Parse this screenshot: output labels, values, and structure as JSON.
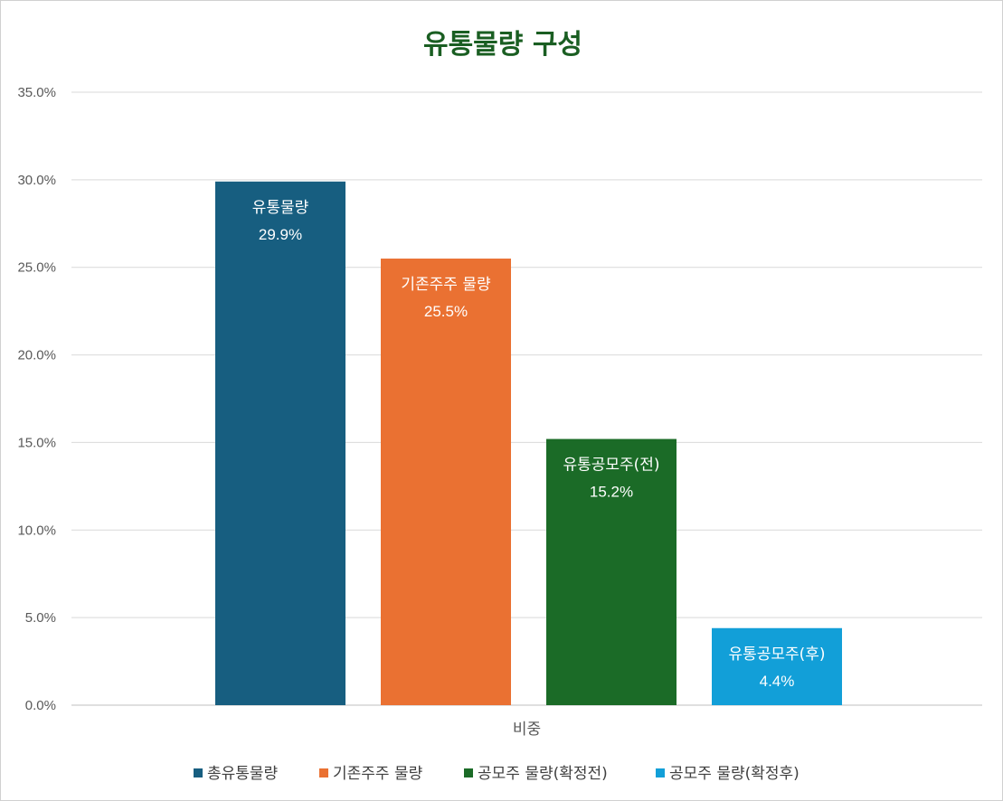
{
  "chart_data": {
    "type": "bar",
    "title": "유통물량 구성",
    "title_color": "#1a5e22",
    "categories": [
      "비중"
    ],
    "ylim": [
      0,
      35
    ],
    "yticks": [
      "0.0%",
      "5.0%",
      "10.0%",
      "15.0%",
      "20.0%",
      "25.0%",
      "30.0%",
      "35.0%"
    ],
    "grid": true,
    "legend_position": "bottom",
    "series": [
      {
        "name": "총유통물량",
        "label": "유통물량",
        "value_label": "29.9%",
        "values": [
          29.9
        ],
        "color": "#175e80"
      },
      {
        "name": "기존주주 물량",
        "label": "기존주주 물량",
        "value_label": "25.5%",
        "values": [
          25.5
        ],
        "color": "#ea7132"
      },
      {
        "name": "공모주 물량(확정전)",
        "label": "유통공모주(전)",
        "value_label": "15.2%",
        "values": [
          15.2
        ],
        "color": "#1b6b27"
      },
      {
        "name": "공모주 물량(확정후)",
        "label": "유통공모주(후)",
        "value_label": "4.4%",
        "values": [
          4.4
        ],
        "color": "#129fd8"
      }
    ]
  }
}
